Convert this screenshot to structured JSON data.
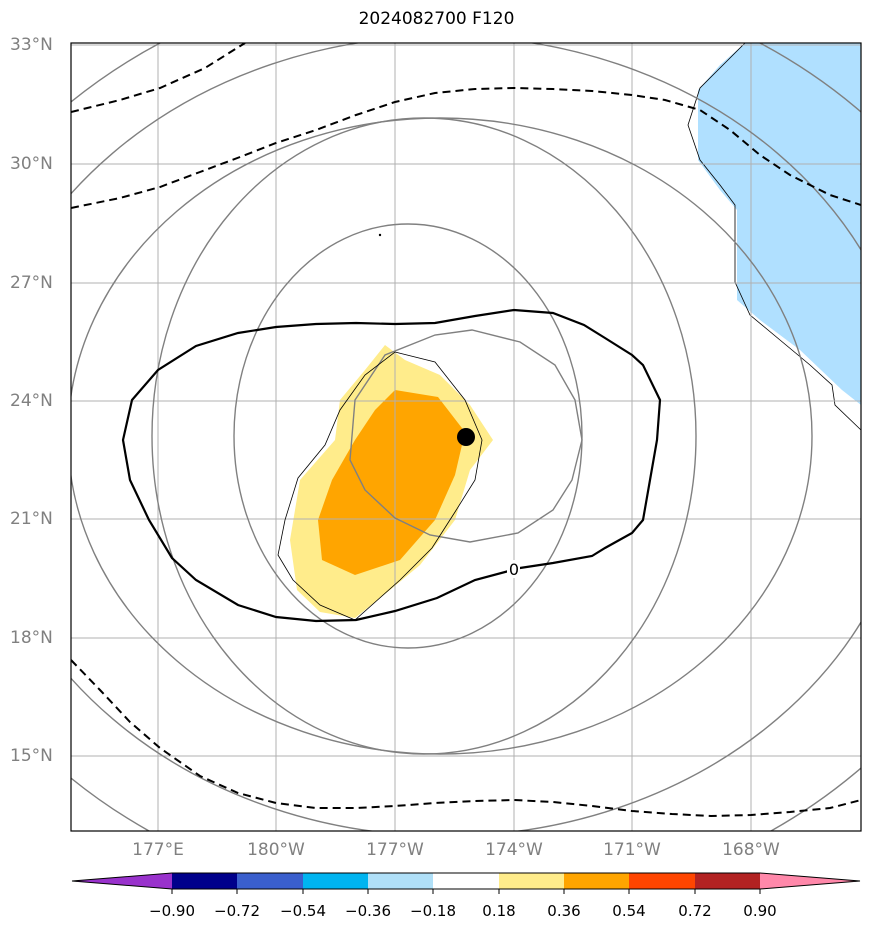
{
  "title": "2024082700 F120",
  "lat_labels": [
    "33°N",
    "30°N",
    "27°N",
    "24°N",
    "21°N",
    "18°N",
    "15°N"
  ],
  "lon_labels": [
    "177°E",
    "180°W",
    "177°W",
    "174°W",
    "171°W",
    "168°W"
  ],
  "contour_label": "0",
  "colorbar": {
    "ticks": [
      "−0.90",
      "−0.72",
      "−0.54",
      "−0.36",
      "−0.18",
      "0.18",
      "0.36",
      "0.54",
      "0.72",
      "0.90"
    ],
    "colors": [
      "#9932cc",
      "#00008b",
      "#3a5fcd",
      "#00b4f0",
      "#b0e0f8",
      "#ffffff",
      "#ffec8b",
      "#ffa500",
      "#ff4500",
      "#b22222",
      "#ff88aa"
    ]
  },
  "colors": {
    "land": "#b0e0ff",
    "grid": "#b0b0b0",
    "frame": "#000000"
  },
  "storm_marker": "filled-circle"
}
